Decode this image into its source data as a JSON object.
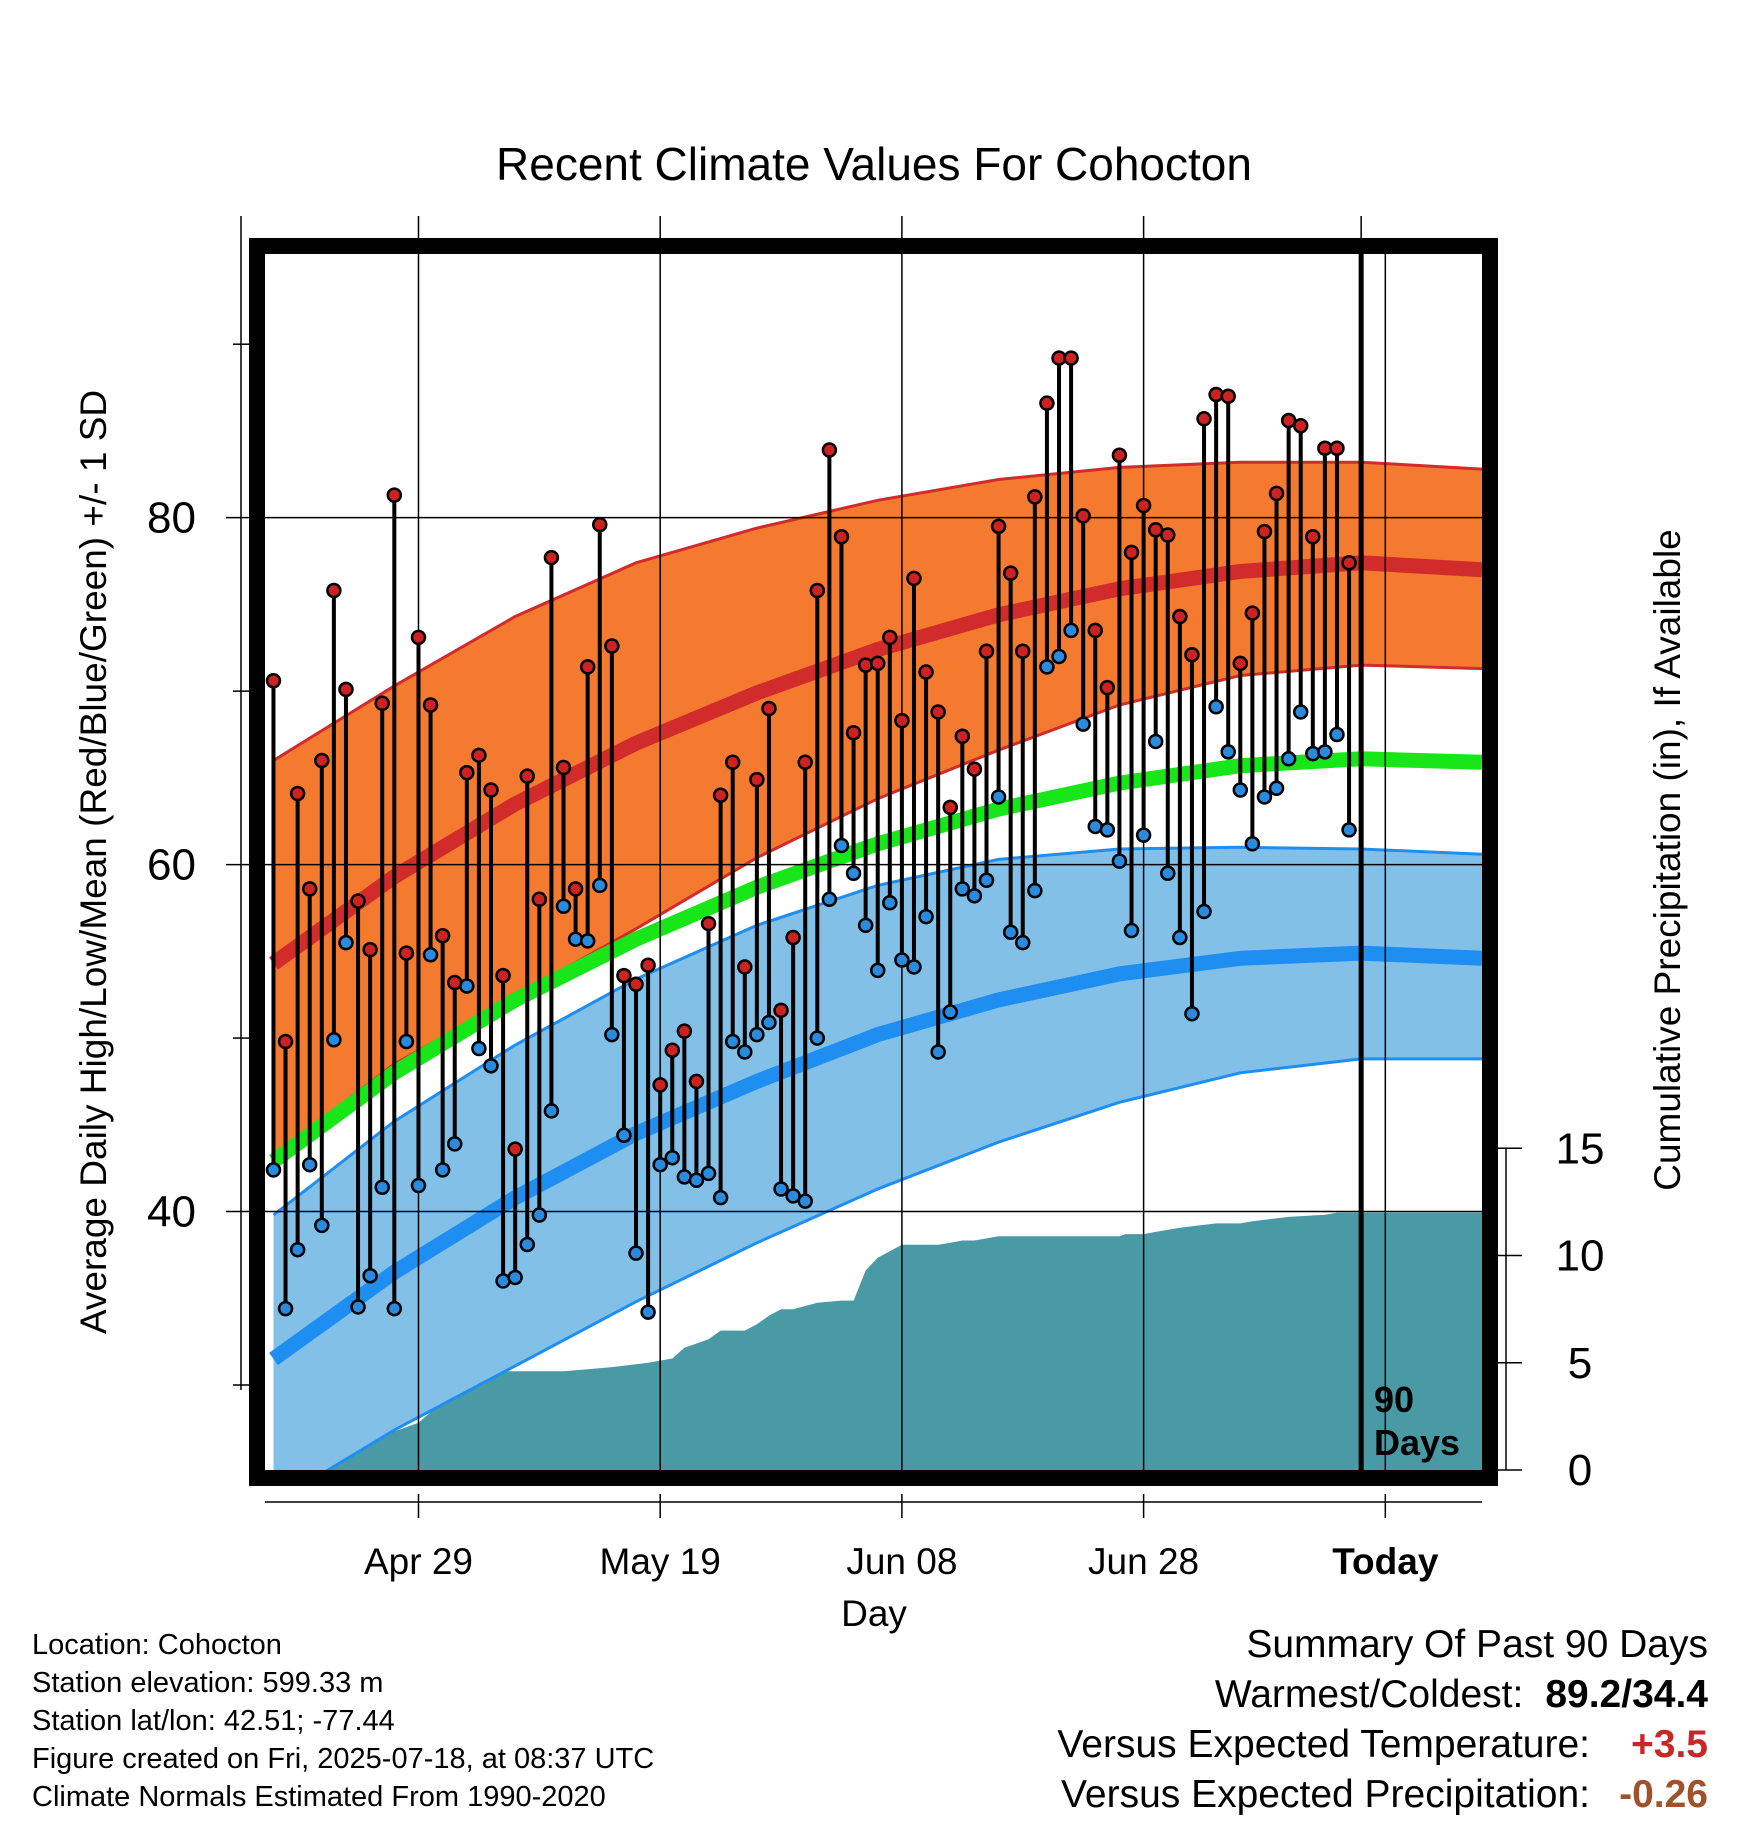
{
  "chart_data": {
    "type": "line",
    "title": "Recent Climate Values For Cohocton",
    "xlabel": "Day",
    "ylabel": "Average Daily High/Low/Mean (Red/Blue/Green) +/- 1 SD",
    "ylabel_right": "Cumulative Precipitation (in), If Available",
    "x_tick_labels": [
      "Apr 29",
      "May 19",
      "Jun 08",
      "Jun 28",
      "Today"
    ],
    "y_ticks": [
      40,
      60,
      80
    ],
    "y_right_ticks": [
      0,
      5,
      10,
      15
    ],
    "ylim": [
      25.1,
      95.2
    ],
    "ylim_right": [
      0,
      56.7
    ],
    "xlim": [
      -0.7,
      100
    ],
    "today_index": 90,
    "today_marker_label": [
      "90",
      "Days"
    ],
    "grid": true,
    "normals": {
      "x": [
        0,
        10,
        20,
        30,
        40,
        50,
        60,
        70,
        80,
        90,
        100
      ],
      "high_mean": [
        54.3,
        59.3,
        63.5,
        67.0,
        69.9,
        72.4,
        74.4,
        75.9,
        76.9,
        77.4,
        77.0
      ],
      "high_upper": [
        66.0,
        70.3,
        74.3,
        77.4,
        79.4,
        81.0,
        82.2,
        82.9,
        83.2,
        83.2,
        82.8
      ],
      "high_lower": [
        43.2,
        48.5,
        52.4,
        56.3,
        60.4,
        63.8,
        66.6,
        69.2,
        70.9,
        71.5,
        71.3
      ],
      "mean": [
        42.9,
        48.0,
        52.2,
        55.7,
        58.7,
        61.2,
        63.2,
        64.7,
        65.7,
        66.1,
        65.9
      ],
      "low_mean": [
        31.5,
        36.5,
        40.8,
        44.5,
        47.5,
        50.2,
        52.2,
        53.7,
        54.6,
        54.9,
        54.6
      ],
      "low_upper": [
        39.8,
        45.2,
        49.6,
        53.4,
        56.5,
        58.8,
        60.3,
        60.9,
        61.0,
        60.9,
        60.6
      ],
      "low_lower": [
        23.2,
        27.4,
        31.1,
        34.8,
        38.2,
        41.3,
        44.0,
        46.3,
        48.0,
        48.8,
        48.8
      ]
    },
    "series": [
      {
        "name": "High",
        "color": "#cc2222",
        "values": [
          70.6,
          49.8,
          64.1,
          58.6,
          66.0,
          75.8,
          70.1,
          57.9,
          55.1,
          69.3,
          81.3,
          54.9,
          73.1,
          69.2,
          55.9,
          53.2,
          65.3,
          66.3,
          64.3,
          53.6,
          43.6,
          65.1,
          58.0,
          77.7,
          65.6,
          58.6,
          71.4,
          79.6,
          72.6,
          53.6,
          53.1,
          54.2,
          47.3,
          49.3,
          50.4,
          47.5,
          56.6,
          64.0,
          65.9,
          54.1,
          64.9,
          69.0,
          51.6,
          55.8,
          65.9,
          75.8,
          83.9,
          78.9,
          67.6,
          71.5,
          71.6,
          73.1,
          68.3,
          76.5,
          71.1,
          68.8,
          63.3,
          67.4,
          65.5,
          72.3,
          79.5,
          76.8,
          72.3,
          81.2,
          86.6,
          89.2,
          89.2,
          80.1,
          73.5,
          70.2,
          83.6,
          78.0,
          80.7,
          79.3,
          79.0,
          74.3,
          72.1,
          85.7,
          87.1,
          87.0,
          71.6,
          74.5,
          79.2,
          81.4,
          85.6,
          85.3,
          78.9,
          84.0,
          84.0,
          77.4
        ]
      },
      {
        "name": "Low",
        "color": "#2a8bde",
        "values": [
          42.4,
          34.4,
          37.8,
          42.7,
          39.2,
          49.9,
          55.5,
          34.5,
          36.3,
          41.4,
          34.4,
          49.8,
          41.5,
          54.8,
          42.4,
          43.9,
          53.0,
          49.4,
          48.4,
          36.0,
          36.2,
          38.1,
          39.8,
          45.8,
          57.6,
          55.7,
          55.6,
          58.8,
          50.2,
          44.4,
          37.6,
          34.2,
          42.7,
          43.1,
          42.0,
          41.8,
          42.2,
          40.8,
          49.8,
          49.2,
          50.2,
          50.9,
          41.3,
          40.9,
          40.6,
          50.0,
          58.0,
          61.1,
          59.5,
          56.5,
          53.9,
          57.8,
          54.5,
          54.1,
          57.0,
          49.2,
          51.5,
          58.6,
          58.2,
          59.1,
          63.9,
          56.1,
          55.5,
          58.5,
          71.4,
          72.0,
          73.5,
          68.1,
          62.2,
          62.0,
          60.2,
          56.2,
          61.7,
          67.1,
          59.5,
          55.8,
          51.4,
          57.3,
          69.1,
          66.5,
          64.3,
          61.2,
          63.9,
          64.4,
          66.1,
          68.8,
          66.4,
          66.5,
          67.5,
          62.0
        ]
      },
      {
        "name": "Cumulative Precipitation",
        "color": "#4a9aa5",
        "x": [
          0,
          1,
          1.5,
          3,
          4,
          5,
          6,
          7,
          8,
          9,
          10,
          11,
          12,
          13,
          14,
          15,
          16,
          17,
          18,
          22,
          24,
          26,
          28,
          31,
          32,
          33,
          34,
          36,
          37,
          39,
          40,
          41,
          42,
          43,
          45,
          47,
          48,
          48.5,
          49,
          50,
          51,
          52,
          55,
          56,
          57,
          58,
          59,
          60,
          70,
          70.5,
          71,
          72,
          73,
          75,
          78,
          80,
          81,
          84,
          87,
          88,
          91,
          100
        ],
        "values": [
          0,
          0,
          0.5,
          0.5,
          0.6,
          1.0,
          1.4,
          1.4,
          1.5,
          1.8,
          1.8,
          2.0,
          2.2,
          2.7,
          3.4,
          3.9,
          4.2,
          4.6,
          4.6,
          4.6,
          4.6,
          4.7,
          4.8,
          5.0,
          5.1,
          5.2,
          5.7,
          6.1,
          6.5,
          6.5,
          6.8,
          7.2,
          7.5,
          7.5,
          7.8,
          7.9,
          7.9,
          8.6,
          9.3,
          9.9,
          10.2,
          10.5,
          10.5,
          10.6,
          10.7,
          10.7,
          10.8,
          10.9,
          10.9,
          11.0,
          11.0,
          11.0,
          11.1,
          11.3,
          11.5,
          11.5,
          11.6,
          11.8,
          11.9,
          12.0,
          12.0,
          12.0
        ]
      }
    ]
  },
  "info": {
    "location": "Location: Cohocton",
    "elevation": "Station elevation: 599.33 m",
    "latlon": "Station lat/lon: 42.51; -77.44",
    "created": "Figure created on Fri, 2025-07-18, at 08:37 UTC",
    "normals": "Climate Normals Estimated From 1990-2020"
  },
  "summary": {
    "title": "Summary Of Past 90 Days",
    "warmest_coldest_label": "Warmest/Coldest:",
    "warmest_coldest_value": "89.2/34.4",
    "temp_label": "Versus Expected Temperature:",
    "temp_value": "+3.5",
    "temp_color": "#c62828",
    "precip_label": "Versus Expected Precipitation:",
    "precip_value": "-0.26",
    "precip_color": "#a0522d"
  },
  "colors": {
    "high_band": "#f47a2f",
    "high_line": "#d22b2b",
    "low_band": "#82c0e8",
    "low_line": "#1e8ef0",
    "mean_line": "#19e619",
    "precip_fill": "#4a9aa5"
  }
}
